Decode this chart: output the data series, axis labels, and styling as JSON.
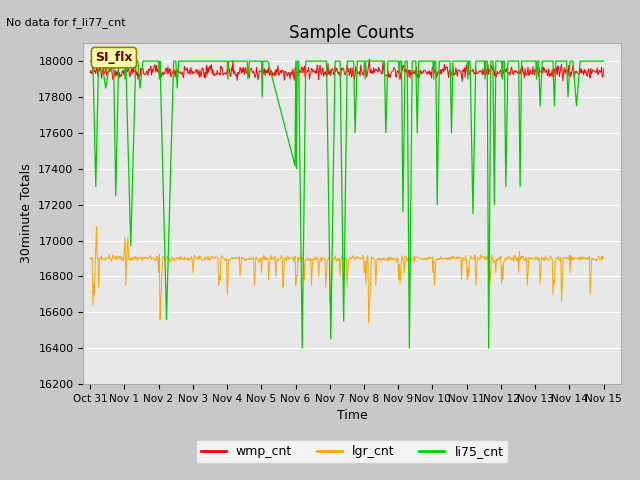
{
  "title": "Sample Counts",
  "top_left_text": "No data for f_li77_cnt",
  "xlabel": "Time",
  "ylabel": "30minute Totals",
  "ylim": [
    16200,
    18100
  ],
  "yticks": [
    16200,
    16400,
    16600,
    16800,
    17000,
    17200,
    17400,
    17600,
    17800,
    18000
  ],
  "xlim_days": [
    -0.2,
    15.5
  ],
  "xtick_labels": [
    "Oct 31",
    "Nov 1",
    "Nov 2",
    "Nov 3",
    "Nov 4",
    "Nov 5",
    "Nov 6",
    "Nov 7",
    "Nov 8",
    "Nov 9",
    "Nov 10",
    "Nov 11",
    "Nov 12",
    "Nov 13",
    "Nov 14",
    "Nov 15"
  ],
  "xtick_positions": [
    0,
    1,
    2,
    3,
    4,
    5,
    6,
    7,
    8,
    9,
    10,
    11,
    12,
    13,
    14,
    15
  ],
  "annotation_box_text": "SI_flx",
  "wmp_color": "#ff0000",
  "lgr_color": "#ffa500",
  "li75_color": "#00cc00",
  "fig_bg_color": "#c8c8c8",
  "plot_bg_color": "#e8e8e8",
  "wmp_base": 17940,
  "lgr_base": 16900,
  "li75_base": 18000,
  "n_days": 15,
  "n_per_day": 48
}
